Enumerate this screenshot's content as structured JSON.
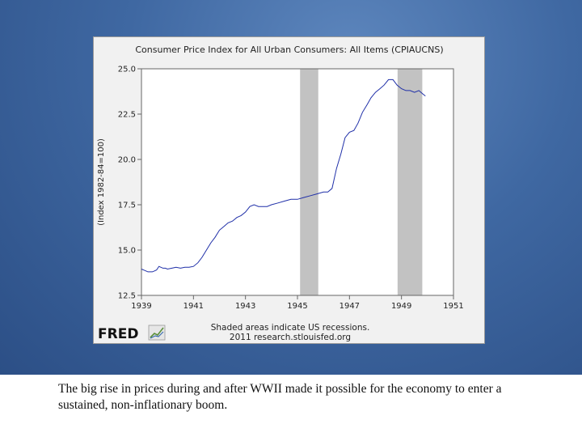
{
  "caption": "The big rise in prices during and after WWII made it possible for the economy to enter a sustained, non-inflationary boom.",
  "colors": {
    "line": "#1f2fa8",
    "recession": "#c2c2c2",
    "frame": "#f1f1f1"
  },
  "logo": {
    "brand": "FRED",
    "icon": "line-chart-icon"
  },
  "chart_data": {
    "type": "line",
    "title": "Consumer Price Index for All Urban Consumers: All Items (CPIAUCNS)",
    "xlabel": "",
    "ylabel": "(Index 1982-84=100)",
    "xlim": [
      1939,
      1951
    ],
    "ylim": [
      12.5,
      25.0
    ],
    "xticks": [
      1939,
      1941,
      1943,
      1945,
      1947,
      1949,
      1951
    ],
    "xtick_labels": [
      "1939",
      "1941",
      "1943",
      "1945",
      "1947",
      "1949",
      "1951"
    ],
    "yticks": [
      12.5,
      15.0,
      17.5,
      20.0,
      22.5,
      25.0
    ],
    "ytick_labels": [
      "12.5",
      "15.0",
      "17.5",
      "20.0",
      "22.5",
      "25.0"
    ],
    "recessions": [
      {
        "start": 1945.1,
        "end": 1945.8
      },
      {
        "start": 1948.85,
        "end": 1949.8
      }
    ],
    "note_line1": "Shaded areas indicate US recessions.",
    "note_line2": "2011 research.stlouisfed.org",
    "series": [
      {
        "name": "CPIAUCNS",
        "x": [
          1939.0,
          1939.08,
          1939.17,
          1939.25,
          1939.33,
          1939.42,
          1939.5,
          1939.58,
          1939.67,
          1939.75,
          1939.83,
          1939.92,
          1940.0,
          1940.17,
          1940.33,
          1940.5,
          1940.67,
          1940.83,
          1941.0,
          1941.17,
          1941.33,
          1941.5,
          1941.67,
          1941.83,
          1942.0,
          1942.17,
          1942.33,
          1942.5,
          1942.67,
          1942.83,
          1943.0,
          1943.17,
          1943.33,
          1943.5,
          1943.67,
          1943.83,
          1944.0,
          1944.25,
          1944.5,
          1944.75,
          1945.0,
          1945.25,
          1945.5,
          1945.75,
          1946.0,
          1946.17,
          1946.33,
          1946.5,
          1946.67,
          1946.83,
          1947.0,
          1947.17,
          1947.33,
          1947.5,
          1947.67,
          1947.83,
          1948.0,
          1948.17,
          1948.33,
          1948.5,
          1948.67,
          1948.83,
          1949.0,
          1949.17,
          1949.33,
          1949.5,
          1949.67,
          1949.83,
          1949.92
        ],
        "values": [
          13.95,
          13.9,
          13.85,
          13.8,
          13.8,
          13.8,
          13.85,
          13.9,
          14.1,
          14.05,
          14.0,
          14.0,
          13.95,
          14.0,
          14.05,
          14.0,
          14.05,
          14.05,
          14.1,
          14.3,
          14.6,
          15.0,
          15.4,
          15.7,
          16.1,
          16.3,
          16.5,
          16.6,
          16.8,
          16.9,
          17.1,
          17.4,
          17.5,
          17.4,
          17.4,
          17.4,
          17.5,
          17.6,
          17.7,
          17.8,
          17.8,
          17.9,
          18.0,
          18.1,
          18.2,
          18.2,
          18.4,
          19.5,
          20.3,
          21.2,
          21.5,
          21.6,
          22.0,
          22.6,
          23.0,
          23.4,
          23.7,
          23.9,
          24.1,
          24.4,
          24.4,
          24.1,
          23.9,
          23.8,
          23.8,
          23.7,
          23.8,
          23.6,
          23.5
        ]
      }
    ]
  }
}
